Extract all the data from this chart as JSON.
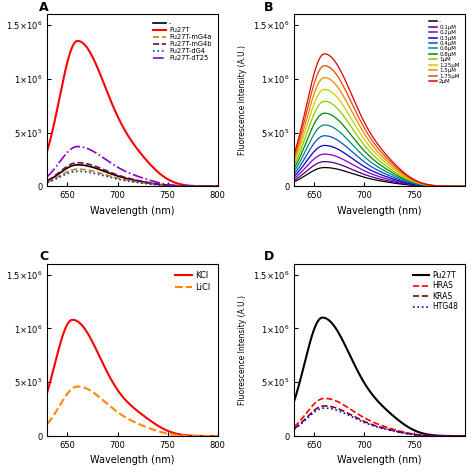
{
  "xlabel": "Wavelength (nm)",
  "ylabel_left": "Fluorescence Intensity (A.U.)",
  "A": {
    "curves": [
      {
        "label": "-",
        "color": "#000000",
        "linestyle": "solid",
        "peak": 200000,
        "peak_nm": 660
      },
      {
        "label": "Pu27T",
        "color": "#ff0000",
        "linestyle": "solid",
        "peak": 1350000,
        "peak_nm": 660
      },
      {
        "label": "Pu27T-mG4a",
        "color": "#cc8800",
        "linestyle": "dashed",
        "peak": 160000,
        "peak_nm": 660
      },
      {
        "label": "Pu27T-mG4b",
        "color": "#880044",
        "linestyle": "dashed",
        "peak": 220000,
        "peak_nm": 660
      },
      {
        "label": "Pu27T-dG4",
        "color": "#0033cc",
        "linestyle": "dotted",
        "peak": 140000,
        "peak_nm": 660
      },
      {
        "label": "Pu27T-dT25",
        "color": "#8800cc",
        "linestyle": "dashdot",
        "peak": 370000,
        "peak_nm": 660
      }
    ]
  },
  "B": {
    "colors": [
      "#000000",
      "#4b0082",
      "#7b00c8",
      "#0000cd",
      "#0055bb",
      "#008888",
      "#008800",
      "#88cc00",
      "#cccc00",
      "#ee8800",
      "#ee4400",
      "#dd0000"
    ],
    "peaks": [
      175000,
      230000,
      300000,
      380000,
      470000,
      570000,
      680000,
      790000,
      900000,
      1010000,
      1120000,
      1230000
    ],
    "labels": [
      "-",
      "0.1μM",
      "0.2μM",
      "0.3μM",
      "0.4μM",
      "0.6μM",
      "0.8μM",
      "1μM",
      "1.25μM",
      "1.5μM",
      "1.75μM",
      "2μM"
    ]
  },
  "C": {
    "curves": [
      {
        "label": "KCl",
        "color": "#ff0000",
        "linestyle": "solid",
        "peak": 1080000,
        "peak_nm": 655
      },
      {
        "label": "LiCl",
        "color": "#ff8800",
        "linestyle": "dashed",
        "peak": 460000,
        "peak_nm": 660
      }
    ]
  },
  "D": {
    "curves": [
      {
        "label": "Pu27T",
        "color": "#000000",
        "linestyle": "solid",
        "peak": 1100000,
        "peak_nm": 658
      },
      {
        "label": "HRAS",
        "color": "#ff0000",
        "linestyle": "dashed",
        "peak": 350000,
        "peak_nm": 660
      },
      {
        "label": "KRAS",
        "color": "#880000",
        "linestyle": "dashed",
        "peak": 280000,
        "peak_nm": 660
      },
      {
        "label": "HTG48",
        "color": "#0000ff",
        "linestyle": "dotted",
        "peak": 260000,
        "peak_nm": 660
      }
    ]
  }
}
